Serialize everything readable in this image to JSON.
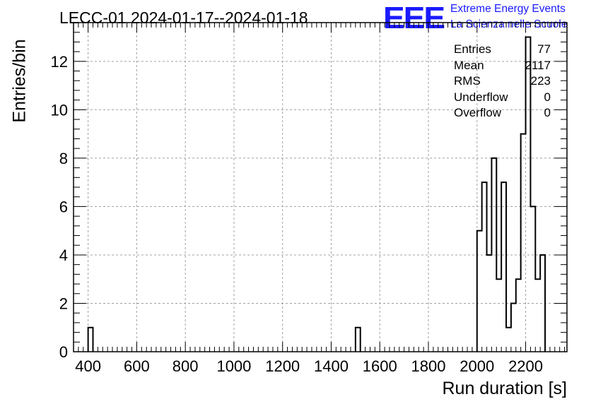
{
  "chart_data": {
    "type": "bar",
    "title": "LECC-01 2024-01-17--2024-01-18",
    "xlabel": "Run duration [s]",
    "ylabel": "Entries/bin",
    "xlim": [
      340,
      2370
    ],
    "ylim": [
      0,
      13.6
    ],
    "bin_width": 20,
    "xticks": [
      "400",
      "600",
      "800",
      "1000",
      "1200",
      "1400",
      "1600",
      "1800",
      "2000",
      "2200"
    ],
    "yticks": [
      "0",
      "2",
      "4",
      "6",
      "8",
      "10",
      "12"
    ],
    "grid": true,
    "bins": [
      {
        "x": 400,
        "value": 1
      },
      {
        "x": 1500,
        "value": 1
      },
      {
        "x": 2000,
        "value": 5
      },
      {
        "x": 2020,
        "value": 7
      },
      {
        "x": 2040,
        "value": 4
      },
      {
        "x": 2060,
        "value": 8
      },
      {
        "x": 2080,
        "value": 3
      },
      {
        "x": 2100,
        "value": 7
      },
      {
        "x": 2120,
        "value": 1
      },
      {
        "x": 2140,
        "value": 2
      },
      {
        "x": 2160,
        "value": 3
      },
      {
        "x": 2180,
        "value": 9
      },
      {
        "x": 2200,
        "value": 13
      },
      {
        "x": 2220,
        "value": 6
      },
      {
        "x": 2240,
        "value": 3
      },
      {
        "x": 2260,
        "value": 4
      }
    ],
    "stats": [
      {
        "label": "Entries",
        "value": "77"
      },
      {
        "label": "Mean",
        "value": "2117"
      },
      {
        "label": "RMS",
        "value": "223"
      },
      {
        "label": "Underflow",
        "value": "0"
      },
      {
        "label": "Overflow",
        "value": "0"
      }
    ]
  },
  "logo": {
    "mark": "EEE",
    "line1": "Extreme Energy Events",
    "line2": "La Scienza nelle Scuole",
    "color": "#1a1aff"
  }
}
